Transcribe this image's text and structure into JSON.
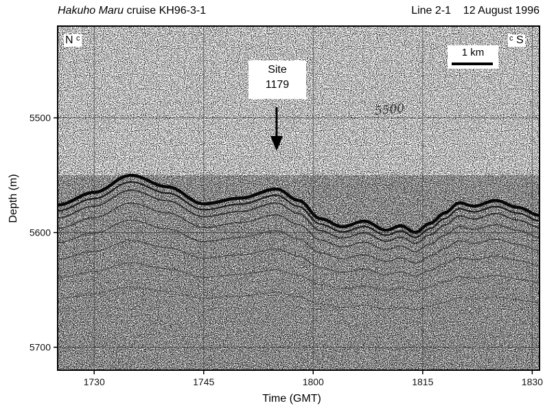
{
  "header": {
    "vessel": "Hakuho Maru",
    "cruise_suffix": " cruise KH96-3-1",
    "line_date": "Line 2-1    12 August 1996"
  },
  "annotations": {
    "site_line1": "Site",
    "site_line2": "1179",
    "scale_label": "1 km",
    "north": "N",
    "south": "S",
    "c_mark": "c",
    "handwritten_depth": "5500"
  },
  "chart_data": {
    "type": "seismic_profile",
    "xlabel": "Time (GMT)",
    "ylabel": "Depth (m)",
    "x_ticks": [
      "1730",
      "1745",
      "1800",
      "1815",
      "1830"
    ],
    "y_ticks": [
      "5500",
      "5600",
      "5700"
    ],
    "x_tick_minutes": [
      0,
      15,
      30,
      45,
      60
    ],
    "y_tick_values": [
      5500,
      5600,
      5700
    ],
    "xlim_minutes": [
      -5,
      61
    ],
    "ylim": [
      5420,
      5720
    ],
    "seafloor": {
      "minutes": [
        -5,
        0,
        5,
        10,
        15,
        20,
        25,
        28,
        31,
        34,
        37,
        40,
        42,
        44,
        46,
        48,
        50,
        52,
        55,
        58,
        61
      ],
      "depth": [
        5576,
        5565,
        5550,
        5560,
        5575,
        5570,
        5562,
        5572,
        5588,
        5595,
        5590,
        5598,
        5594,
        5600,
        5592,
        5583,
        5574,
        5577,
        5572,
        5578,
        5585
      ]
    },
    "site_time_minutes": 25.4,
    "site_label": "Site 1179",
    "scale_bar_km": 1,
    "grid": true
  }
}
